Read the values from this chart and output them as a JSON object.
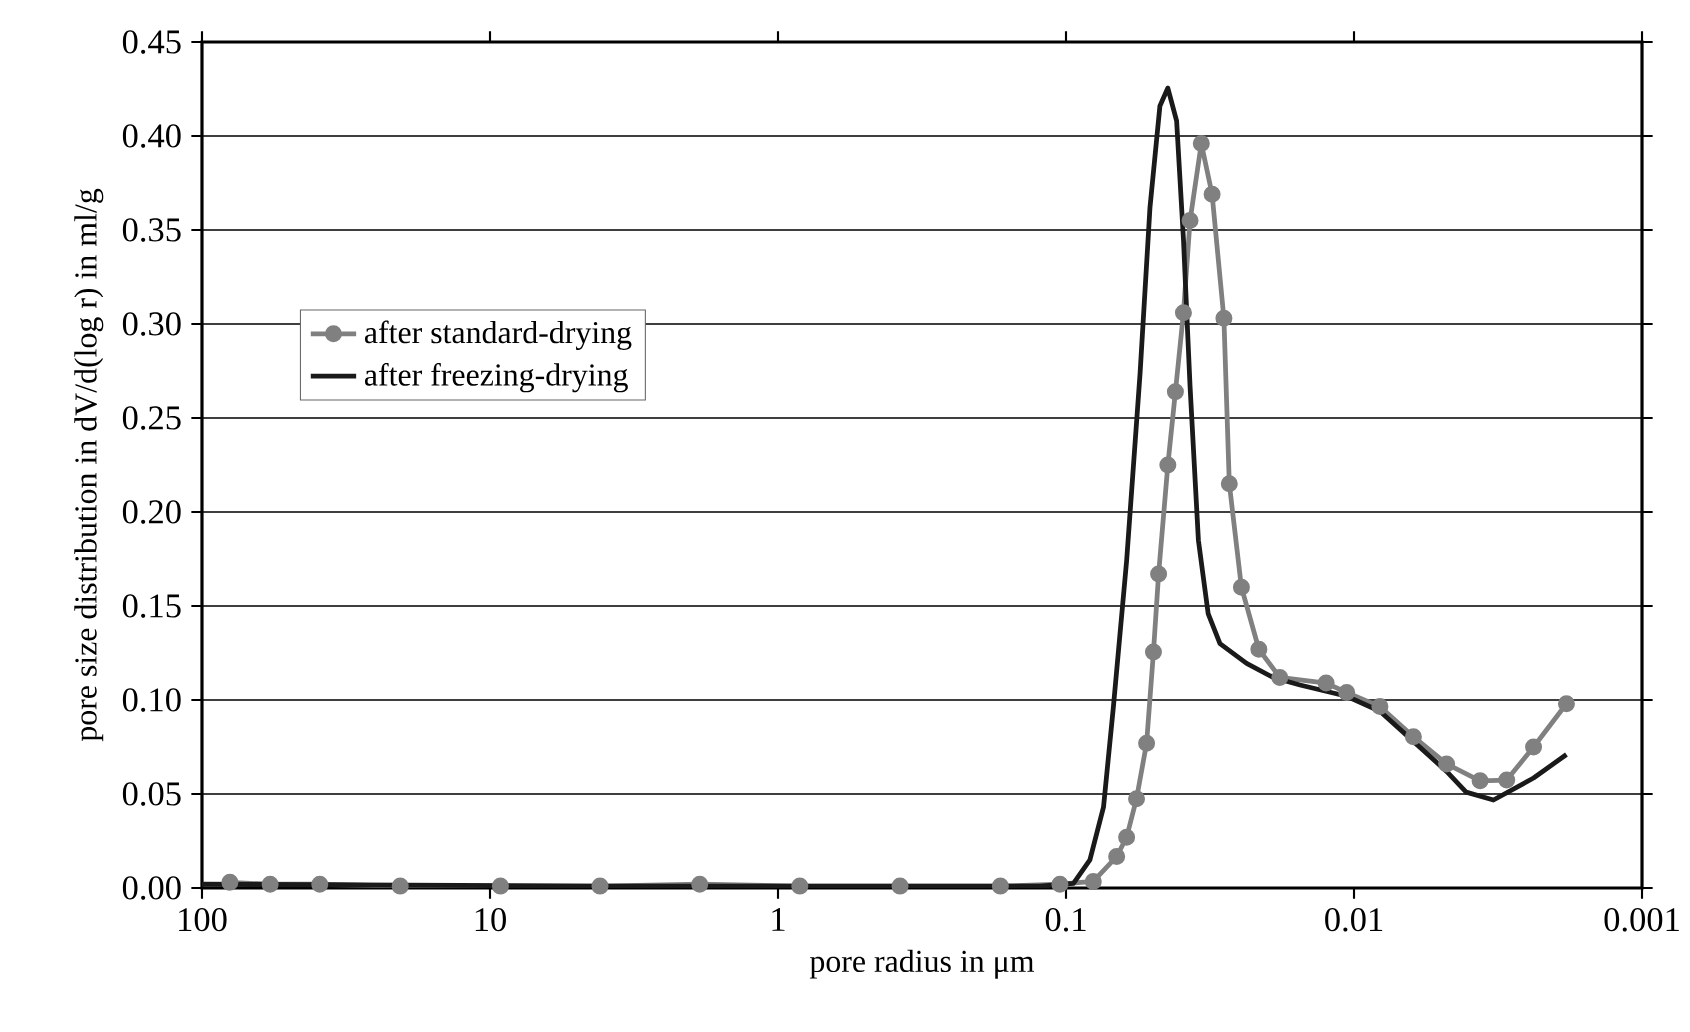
{
  "chart_data": {
    "type": "line",
    "xlabel": "pore radius in μm",
    "ylabel": "pore size distribution in dV/d(log r) in ml/g",
    "log": "x",
    "grid": "y",
    "legend": "left",
    "xlim": [
      100,
      0.001
    ],
    "xticks": [
      100,
      10,
      1,
      0.1,
      0.01,
      0.001
    ],
    "ylim": [
      0,
      0.45
    ],
    "yticks": [
      {
        "value": 0,
        "label": "0.00"
      },
      {
        "value": 0.05,
        "label": "0.05"
      },
      {
        "value": 0.1,
        "label": "0.10"
      },
      {
        "value": 0.15,
        "label": "0.15"
      },
      {
        "value": 0.2,
        "label": "0.20"
      },
      {
        "value": 0.25,
        "label": "0.25"
      },
      {
        "value": 0.3,
        "label": "0.30"
      },
      {
        "value": 0.35,
        "label": "0.35"
      },
      {
        "value": 0.4,
        "label": "0.40"
      },
      {
        "value": 0.45,
        "label": "0.45"
      }
    ],
    "series": [
      {
        "name": "after standard-drying",
        "color": "#808080",
        "marker": "circle",
        "x": [
          80,
          58,
          39,
          20.5,
          9.2,
          4.15,
          1.87,
          0.84,
          0.377,
          0.169,
          0.105,
          0.0804,
          0.0667,
          0.0616,
          0.0569,
          0.0525,
          0.0497,
          0.0477,
          0.0443,
          0.0417,
          0.0391,
          0.0371,
          0.0339,
          0.0311,
          0.0283,
          0.0271,
          0.0246,
          0.0214,
          0.0181,
          0.0125,
          0.0106,
          0.00813,
          0.00622,
          0.00477,
          0.00365,
          0.00295,
          0.00238,
          0.00183
        ],
        "values": [
          0.003,
          0.002,
          0.002,
          0.001,
          0.001,
          0.001,
          0.002,
          0.001,
          0.001,
          0.001,
          0.002,
          0.0035,
          0.0167,
          0.027,
          0.0475,
          0.077,
          0.1255,
          0.167,
          0.225,
          0.264,
          0.306,
          0.355,
          0.396,
          0.369,
          0.303,
          0.215,
          0.16,
          0.127,
          0.112,
          0.109,
          0.104,
          0.0965,
          0.0805,
          0.066,
          0.057,
          0.0574,
          0.075,
          0.098
        ]
      },
      {
        "name": "after freezing-drying",
        "color": "#1a1a1a",
        "marker": "none",
        "x": [
          100,
          4.15,
          0.123,
          0.0942,
          0.0826,
          0.0741,
          0.0685,
          0.0616,
          0.0553,
          0.0511,
          0.0472,
          0.0443,
          0.0413,
          0.0391,
          0.0371,
          0.0347,
          0.0321,
          0.0292,
          0.0236,
          0.0191,
          0.0154,
          0.0106,
          0.00813,
          0.00622,
          0.00477,
          0.00408,
          0.00328,
          0.00238,
          0.00183
        ],
        "values": [
          0.002,
          0.001,
          0.001,
          0.0025,
          0.015,
          0.043,
          0.096,
          0.174,
          0.274,
          0.362,
          0.416,
          0.4255,
          0.408,
          0.345,
          0.267,
          0.185,
          0.146,
          0.13,
          0.1195,
          0.112,
          0.108,
          0.102,
          0.094,
          0.078,
          0.062,
          0.051,
          0.0468,
          0.0585,
          0.071
        ]
      }
    ]
  }
}
